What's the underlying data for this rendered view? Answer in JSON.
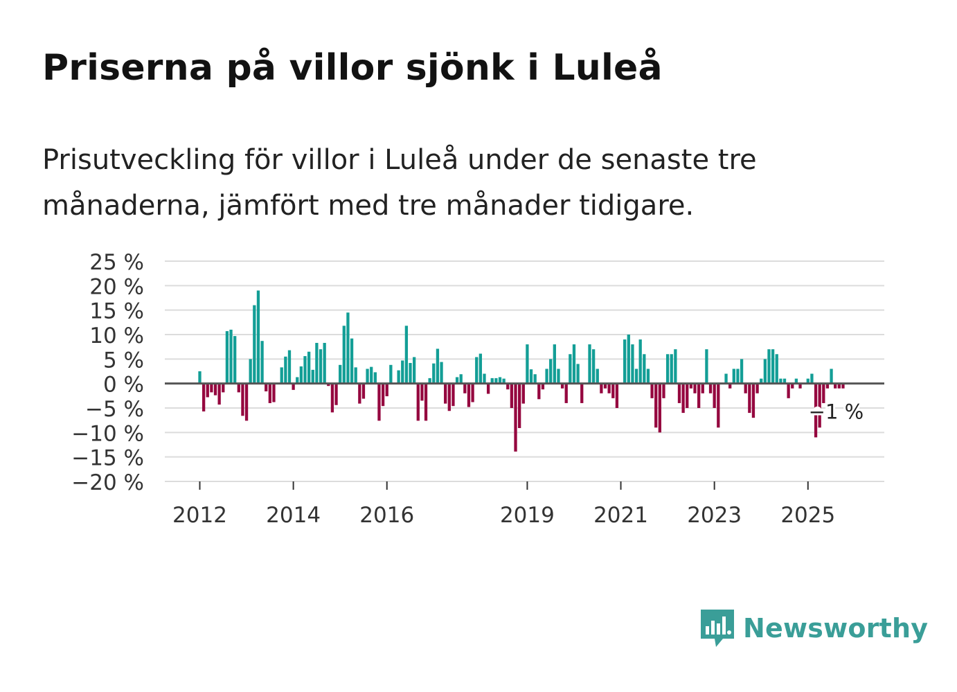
{
  "header": {
    "title": "Priserna på villor sjönk i Luleå",
    "subtitle": "Prisutveckling för villor i Luleå under de senaste tre månaderna, jämfört med tre månader tidigare."
  },
  "brand": {
    "name": "Newsworthy",
    "color": "#3a9e98"
  },
  "chart_data": {
    "type": "bar",
    "title": "Priserna på villor sjönk i Luleå",
    "subtitle": "Prisutveckling för villor i Luleå under de senaste tre månaderna, jämfört med tre månader tidigare.",
    "xlabel": "",
    "ylabel": "",
    "unit": "%",
    "ylim": [
      -20,
      25
    ],
    "y_ticks": [
      25,
      20,
      15,
      10,
      5,
      0,
      -5,
      -10,
      -15,
      -20
    ],
    "y_tick_labels": [
      "25 %",
      "20 %",
      "15 %",
      "10 %",
      "5 %",
      "0 %",
      "−5 %",
      "−10 %",
      "−15 %",
      "−20 %"
    ],
    "x_ticks": [
      "2012",
      "2014",
      "2016",
      "2019",
      "2021",
      "2023",
      "2025"
    ],
    "x_tick_month_index": [
      0,
      24,
      48,
      84,
      108,
      132,
      156
    ],
    "start": "2012-01",
    "frequency": "monthly",
    "positive_color": "#139e96",
    "negative_color": "#95073f",
    "last_value_label": "−1 %",
    "grid": true,
    "values": [
      2.5,
      -5.7,
      -2.8,
      -1.8,
      -2.4,
      -4.3,
      -1.8,
      10.7,
      11.0,
      9.7,
      -1.8,
      -6.6,
      -7.6,
      5.0,
      16.0,
      19.0,
      8.7,
      -1.6,
      -4.0,
      -3.8,
      0.0,
      3.3,
      5.5,
      6.8,
      -1.3,
      1.3,
      3.5,
      5.6,
      6.5,
      2.8,
      8.3,
      7.0,
      8.3,
      -0.5,
      -5.9,
      -4.4,
      3.8,
      11.8,
      14.5,
      9.2,
      3.3,
      -4.1,
      -3.1,
      3.0,
      3.4,
      2.3,
      -7.6,
      -4.6,
      -2.6,
      3.8,
      0.0,
      2.7,
      4.7,
      11.8,
      4.2,
      5.4,
      -7.6,
      -3.5,
      -7.6,
      1.1,
      4.1,
      7.1,
      4.4,
      -4.1,
      -5.6,
      -4.6,
      1.3,
      1.9,
      -2.0,
      -4.8,
      -3.8,
      5.4,
      6.1,
      2.0,
      -2.1,
      1.1,
      1.1,
      1.3,
      1.0,
      -1.2,
      -5.0,
      -13.9,
      -9.1,
      -4.1,
      8.0,
      2.9,
      1.9,
      -3.2,
      -1.2,
      3.0,
      5.0,
      8.0,
      3.0,
      -1.0,
      -4.0,
      6.0,
      8.0,
      4.0,
      -4.0,
      0.0,
      8.0,
      7.0,
      3.0,
      -2.0,
      -1.0,
      -2.0,
      -3.0,
      -5.0,
      0.0,
      9.0,
      10.0,
      8.0,
      3.0,
      9.0,
      6.0,
      3.0,
      -3.0,
      -9.0,
      -10.0,
      -3.0,
      6.0,
      6.0,
      7.0,
      -4.0,
      -6.0,
      -5.0,
      -1.0,
      -2.0,
      -5.0,
      -2.0,
      7.0,
      -2.0,
      -5.0,
      -9.0,
      0.0,
      2.0,
      -1.0,
      3.0,
      3.0,
      5.0,
      -2.0,
      -6.0,
      -7.0,
      -2.0,
      1.0,
      5.0,
      7.0,
      7.0,
      6.0,
      1.0,
      1.0,
      -3.0,
      -1.0,
      1.0,
      -1.0,
      0.0,
      1.0,
      2.0,
      -11.0,
      -9.0,
      -4.0,
      -1.0,
      3.0,
      -1.0,
      -1.0,
      -1.0
    ]
  }
}
